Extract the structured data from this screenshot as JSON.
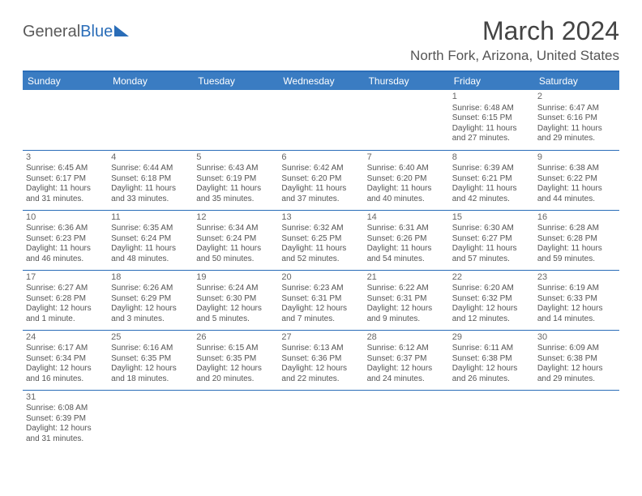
{
  "logo": {
    "part1": "General",
    "part2": "Blue"
  },
  "title": {
    "month": "March 2024",
    "location": "North Fork, Arizona, United States"
  },
  "colors": {
    "header_bg": "#3a7cc2",
    "border": "#2a6db8",
    "text": "#555555"
  },
  "day_headers": [
    "Sunday",
    "Monday",
    "Tuesday",
    "Wednesday",
    "Thursday",
    "Friday",
    "Saturday"
  ],
  "weeks": [
    [
      null,
      null,
      null,
      null,
      null,
      {
        "n": "1",
        "sr": "Sunrise: 6:48 AM",
        "ss": "Sunset: 6:15 PM",
        "dl1": "Daylight: 11 hours",
        "dl2": "and 27 minutes."
      },
      {
        "n": "2",
        "sr": "Sunrise: 6:47 AM",
        "ss": "Sunset: 6:16 PM",
        "dl1": "Daylight: 11 hours",
        "dl2": "and 29 minutes."
      }
    ],
    [
      {
        "n": "3",
        "sr": "Sunrise: 6:45 AM",
        "ss": "Sunset: 6:17 PM",
        "dl1": "Daylight: 11 hours",
        "dl2": "and 31 minutes."
      },
      {
        "n": "4",
        "sr": "Sunrise: 6:44 AM",
        "ss": "Sunset: 6:18 PM",
        "dl1": "Daylight: 11 hours",
        "dl2": "and 33 minutes."
      },
      {
        "n": "5",
        "sr": "Sunrise: 6:43 AM",
        "ss": "Sunset: 6:19 PM",
        "dl1": "Daylight: 11 hours",
        "dl2": "and 35 minutes."
      },
      {
        "n": "6",
        "sr": "Sunrise: 6:42 AM",
        "ss": "Sunset: 6:20 PM",
        "dl1": "Daylight: 11 hours",
        "dl2": "and 37 minutes."
      },
      {
        "n": "7",
        "sr": "Sunrise: 6:40 AM",
        "ss": "Sunset: 6:20 PM",
        "dl1": "Daylight: 11 hours",
        "dl2": "and 40 minutes."
      },
      {
        "n": "8",
        "sr": "Sunrise: 6:39 AM",
        "ss": "Sunset: 6:21 PM",
        "dl1": "Daylight: 11 hours",
        "dl2": "and 42 minutes."
      },
      {
        "n": "9",
        "sr": "Sunrise: 6:38 AM",
        "ss": "Sunset: 6:22 PM",
        "dl1": "Daylight: 11 hours",
        "dl2": "and 44 minutes."
      }
    ],
    [
      {
        "n": "10",
        "sr": "Sunrise: 6:36 AM",
        "ss": "Sunset: 6:23 PM",
        "dl1": "Daylight: 11 hours",
        "dl2": "and 46 minutes."
      },
      {
        "n": "11",
        "sr": "Sunrise: 6:35 AM",
        "ss": "Sunset: 6:24 PM",
        "dl1": "Daylight: 11 hours",
        "dl2": "and 48 minutes."
      },
      {
        "n": "12",
        "sr": "Sunrise: 6:34 AM",
        "ss": "Sunset: 6:24 PM",
        "dl1": "Daylight: 11 hours",
        "dl2": "and 50 minutes."
      },
      {
        "n": "13",
        "sr": "Sunrise: 6:32 AM",
        "ss": "Sunset: 6:25 PM",
        "dl1": "Daylight: 11 hours",
        "dl2": "and 52 minutes."
      },
      {
        "n": "14",
        "sr": "Sunrise: 6:31 AM",
        "ss": "Sunset: 6:26 PM",
        "dl1": "Daylight: 11 hours",
        "dl2": "and 54 minutes."
      },
      {
        "n": "15",
        "sr": "Sunrise: 6:30 AM",
        "ss": "Sunset: 6:27 PM",
        "dl1": "Daylight: 11 hours",
        "dl2": "and 57 minutes."
      },
      {
        "n": "16",
        "sr": "Sunrise: 6:28 AM",
        "ss": "Sunset: 6:28 PM",
        "dl1": "Daylight: 11 hours",
        "dl2": "and 59 minutes."
      }
    ],
    [
      {
        "n": "17",
        "sr": "Sunrise: 6:27 AM",
        "ss": "Sunset: 6:28 PM",
        "dl1": "Daylight: 12 hours",
        "dl2": "and 1 minute."
      },
      {
        "n": "18",
        "sr": "Sunrise: 6:26 AM",
        "ss": "Sunset: 6:29 PM",
        "dl1": "Daylight: 12 hours",
        "dl2": "and 3 minutes."
      },
      {
        "n": "19",
        "sr": "Sunrise: 6:24 AM",
        "ss": "Sunset: 6:30 PM",
        "dl1": "Daylight: 12 hours",
        "dl2": "and 5 minutes."
      },
      {
        "n": "20",
        "sr": "Sunrise: 6:23 AM",
        "ss": "Sunset: 6:31 PM",
        "dl1": "Daylight: 12 hours",
        "dl2": "and 7 minutes."
      },
      {
        "n": "21",
        "sr": "Sunrise: 6:22 AM",
        "ss": "Sunset: 6:31 PM",
        "dl1": "Daylight: 12 hours",
        "dl2": "and 9 minutes."
      },
      {
        "n": "22",
        "sr": "Sunrise: 6:20 AM",
        "ss": "Sunset: 6:32 PM",
        "dl1": "Daylight: 12 hours",
        "dl2": "and 12 minutes."
      },
      {
        "n": "23",
        "sr": "Sunrise: 6:19 AM",
        "ss": "Sunset: 6:33 PM",
        "dl1": "Daylight: 12 hours",
        "dl2": "and 14 minutes."
      }
    ],
    [
      {
        "n": "24",
        "sr": "Sunrise: 6:17 AM",
        "ss": "Sunset: 6:34 PM",
        "dl1": "Daylight: 12 hours",
        "dl2": "and 16 minutes."
      },
      {
        "n": "25",
        "sr": "Sunrise: 6:16 AM",
        "ss": "Sunset: 6:35 PM",
        "dl1": "Daylight: 12 hours",
        "dl2": "and 18 minutes."
      },
      {
        "n": "26",
        "sr": "Sunrise: 6:15 AM",
        "ss": "Sunset: 6:35 PM",
        "dl1": "Daylight: 12 hours",
        "dl2": "and 20 minutes."
      },
      {
        "n": "27",
        "sr": "Sunrise: 6:13 AM",
        "ss": "Sunset: 6:36 PM",
        "dl1": "Daylight: 12 hours",
        "dl2": "and 22 minutes."
      },
      {
        "n": "28",
        "sr": "Sunrise: 6:12 AM",
        "ss": "Sunset: 6:37 PM",
        "dl1": "Daylight: 12 hours",
        "dl2": "and 24 minutes."
      },
      {
        "n": "29",
        "sr": "Sunrise: 6:11 AM",
        "ss": "Sunset: 6:38 PM",
        "dl1": "Daylight: 12 hours",
        "dl2": "and 26 minutes."
      },
      {
        "n": "30",
        "sr": "Sunrise: 6:09 AM",
        "ss": "Sunset: 6:38 PM",
        "dl1": "Daylight: 12 hours",
        "dl2": "and 29 minutes."
      }
    ],
    [
      {
        "n": "31",
        "sr": "Sunrise: 6:08 AM",
        "ss": "Sunset: 6:39 PM",
        "dl1": "Daylight: 12 hours",
        "dl2": "and 31 minutes."
      },
      null,
      null,
      null,
      null,
      null,
      null
    ]
  ]
}
